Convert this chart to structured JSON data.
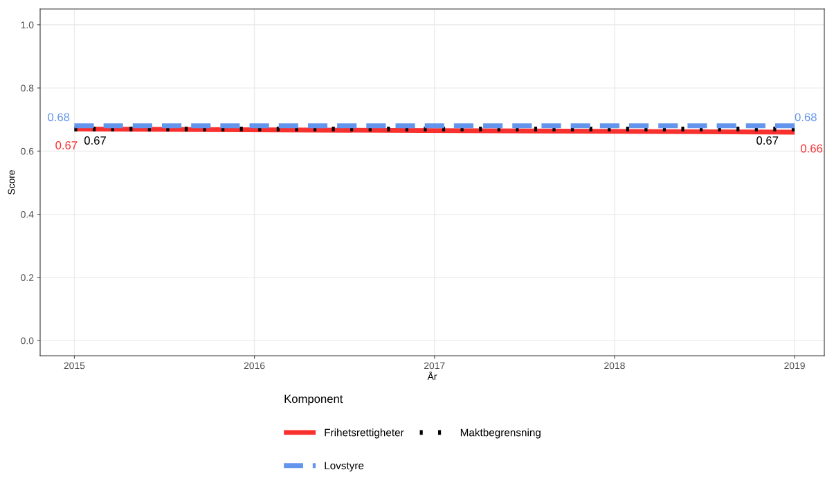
{
  "chart_data": {
    "type": "line",
    "xlabel": "År",
    "ylabel": "Score",
    "legend_title": "Komponent",
    "x": [
      2015,
      2019
    ],
    "series": [
      {
        "name": "Frihetsrettigheter",
        "color": "#f8312f",
        "values": [
          0.67,
          0.66
        ],
        "line_style": "solid",
        "value_labels": [
          "0.67",
          "0.66"
        ]
      },
      {
        "name": "Maktbegrensning",
        "color": "#000000",
        "values": [
          0.67,
          0.67
        ],
        "line_style": "dotted",
        "value_labels": [
          "0.67",
          "0.67"
        ]
      },
      {
        "name": "Lovstyre",
        "color": "#6495ed",
        "values": [
          0.68,
          0.68
        ],
        "line_style": "dashed",
        "value_labels": [
          "0.68",
          "0.68"
        ]
      }
    ],
    "xlim": [
      2014.81,
      2019.165
    ],
    "ylim": [
      -0.048,
      1.05
    ],
    "xticks": [
      2015,
      2016,
      2017,
      2018,
      2019
    ],
    "yticks": [
      {
        "value": 0,
        "label": "0.0"
      },
      0.2,
      0.4,
      0.6,
      0.8,
      {
        "value": 1,
        "label": "1.0"
      }
    ],
    "grid": true,
    "legend": "bottom"
  }
}
